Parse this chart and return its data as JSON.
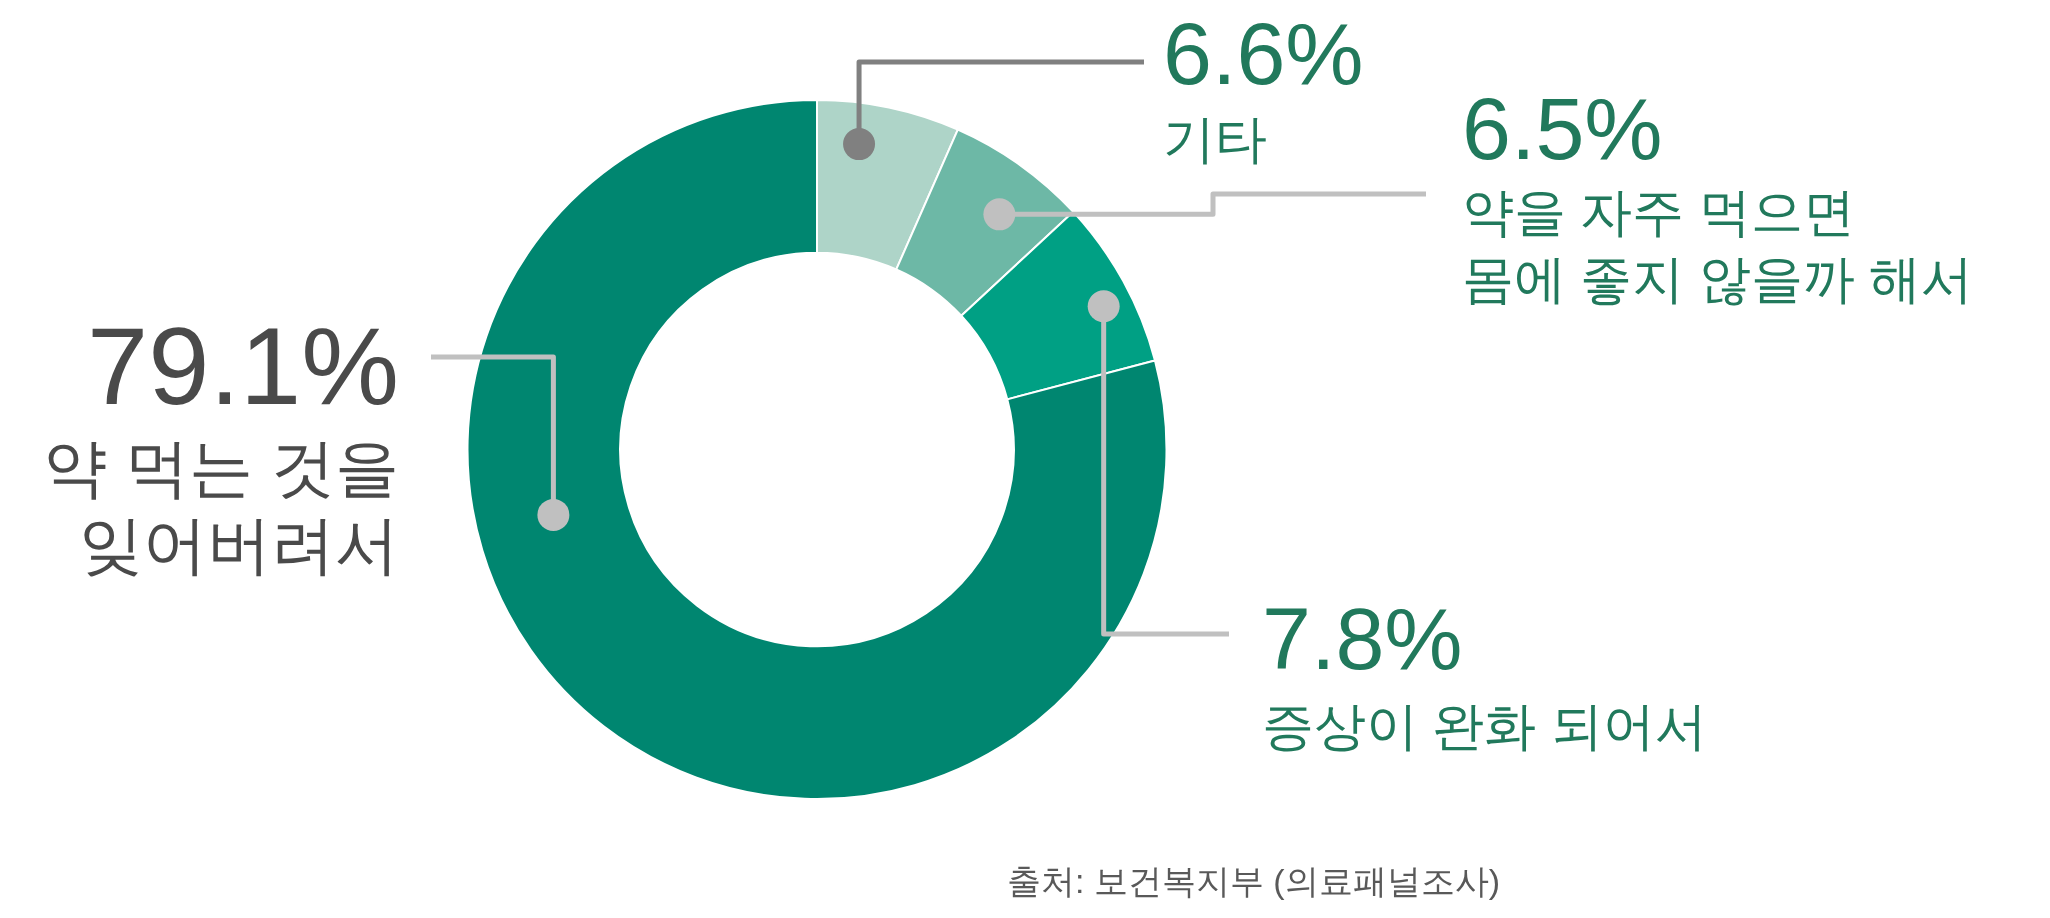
{
  "chart_data": {
    "type": "donut",
    "categories": [
      "기타",
      "약을 자주 먹으면 몸에 좋지 않을까 해서",
      "증상이 완화 되어서",
      "약 먹는 것을 잊어버려서"
    ],
    "values": [
      6.6,
      6.5,
      7.8,
      79.1
    ],
    "colors": [
      "#aed4c8",
      "#6db8a6",
      "#00a084",
      "#008670"
    ],
    "value_labels": [
      "6.6%",
      "6.5%",
      "7.8%",
      "79.1%"
    ],
    "annotations": [
      "출처: 보건복지부 (의료패널조사)"
    ]
  }
}
